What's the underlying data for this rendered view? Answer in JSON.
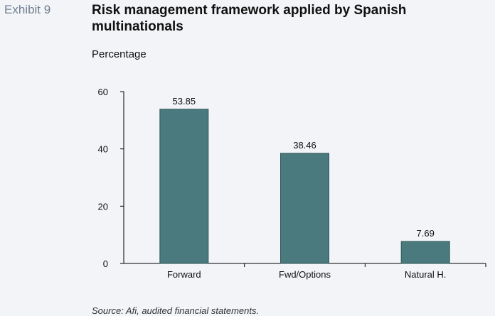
{
  "header": {
    "exhibit_label": "Exhibit 9",
    "title": "Risk management framework applied by Spanish multinationals",
    "subtitle": "Percentage"
  },
  "footer": {
    "source": "Source: Afi, audited financial statements."
  },
  "colors": {
    "background": "#f2f4f7",
    "bar": "#4a7a7d",
    "bar_stroke": "#2f5557",
    "exhibit_label": "#6f7f92"
  },
  "chart_data": {
    "type": "bar",
    "title": "Risk management framework applied by Spanish multinationals",
    "ylabel": "Percentage",
    "xlabel": "",
    "categories": [
      "Forward",
      "Fwd/Options",
      "Natural H."
    ],
    "values": [
      53.85,
      38.46,
      7.69
    ],
    "data_labels": [
      "53.85",
      "38.46",
      "7.69"
    ],
    "ylim": [
      0,
      60
    ],
    "yticks": [
      0,
      20,
      40,
      60
    ],
    "grid": false,
    "legend": "none"
  }
}
